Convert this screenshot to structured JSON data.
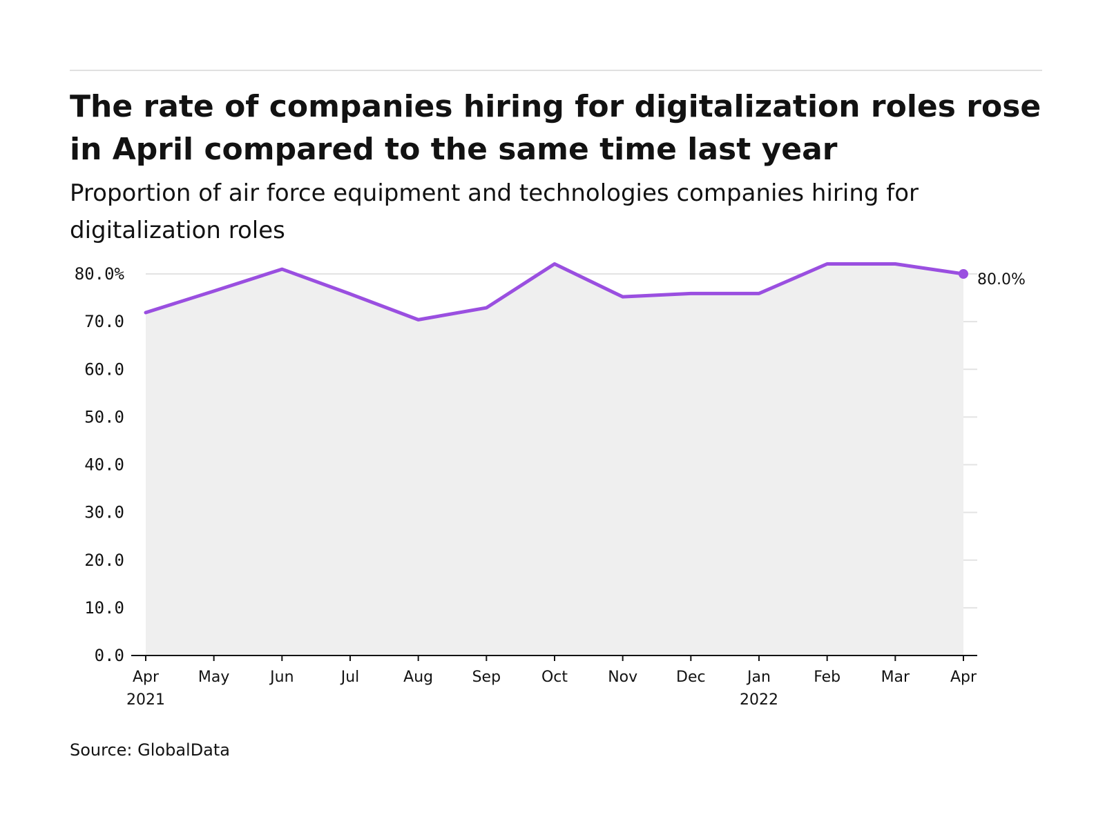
{
  "title": "The rate of companies hiring for digitalization roles rose in April compared to the same time last year",
  "subtitle": "Proportion of air force equipment and technologies companies hiring for digitalization roles",
  "source": "Source: GlobalData",
  "colors": {
    "line": "#9a4fe0",
    "area": "#efefef",
    "grid": "#e3e3e3",
    "axis": "#121212"
  },
  "chart_data": {
    "type": "area",
    "title": "The rate of companies hiring for digitalization roles rose in April compared to the same time last year",
    "subtitle": "Proportion of air force equipment and technologies companies hiring for digitalization roles",
    "xlabel": "",
    "ylabel": "",
    "categories": [
      "Apr 2021",
      "May 2021",
      "Jun 2021",
      "Jul 2021",
      "Aug 2021",
      "Sep 2021",
      "Oct 2021",
      "Nov 2021",
      "Dec 2021",
      "Jan 2022",
      "Feb 2022",
      "Mar 2022",
      "Apr 2022"
    ],
    "x_tick_labels": [
      {
        "month": "Apr",
        "year": "2021"
      },
      {
        "month": "May",
        "year": ""
      },
      {
        "month": "Jun",
        "year": ""
      },
      {
        "month": "Jul",
        "year": ""
      },
      {
        "month": "Aug",
        "year": ""
      },
      {
        "month": "Sep",
        "year": ""
      },
      {
        "month": "Oct",
        "year": ""
      },
      {
        "month": "Nov",
        "year": ""
      },
      {
        "month": "Dec",
        "year": ""
      },
      {
        "month": "Jan",
        "year": "2022"
      },
      {
        "month": "Feb",
        "year": ""
      },
      {
        "month": "Mar",
        "year": ""
      },
      {
        "month": "Apr",
        "year": ""
      }
    ],
    "series": [
      {
        "values": [
          71.9,
          76.4,
          81.0,
          75.8,
          70.4,
          72.9,
          82.1,
          75.2,
          75.9,
          75.9,
          82.1,
          82.1,
          80.0
        ]
      }
    ],
    "ylim": [
      0,
      80
    ],
    "y_ticks": [
      0,
      10,
      20,
      30,
      40,
      50,
      60,
      70,
      80
    ],
    "y_tick_labels": [
      "0.0",
      "10.0",
      "20.0",
      "30.0",
      "40.0",
      "50.0",
      "60.0",
      "70.0",
      "80.0%"
    ],
    "end_label": "80.0%",
    "grid": true,
    "legend": "none"
  }
}
